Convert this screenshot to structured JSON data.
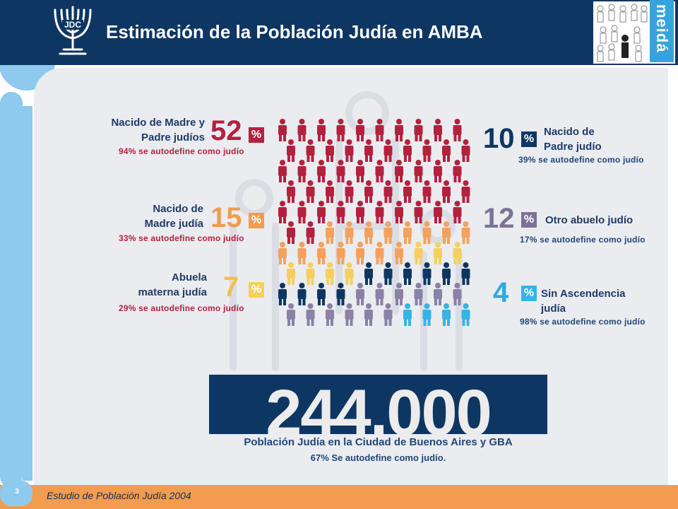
{
  "header": {
    "title": "Estimación de la Población Judía en AMBA",
    "logo_text": "JDC",
    "brand": "meidá"
  },
  "categories": [
    {
      "label_lines": [
        "Nacido de Madre y",
        "Padre judíos"
      ],
      "value": "52",
      "percent_sign": "%",
      "note": "94% se autodefine como judío",
      "color": "#b4213f"
    },
    {
      "label_lines": [
        "Nacido de",
        "Madre judía"
      ],
      "value": "15",
      "percent_sign": "%",
      "note": "33% se autodefine como judío",
      "color": "#f5a15c"
    },
    {
      "label_lines": [
        "Abuela",
        "materna judía"
      ],
      "value": "7",
      "percent_sign": "%",
      "note": "29% se autodefine como judío",
      "color": "#f6cf5e"
    },
    {
      "label_lines": [
        "Nacido de",
        "Padre judío"
      ],
      "value": "10",
      "percent_sign": "%",
      "note": "39% se autodefine como judío",
      "color": "#0d3663"
    },
    {
      "label_lines": [
        "Otro abuelo judío"
      ],
      "value": "12",
      "percent_sign": "%",
      "note": "17% se autodefine como judío",
      "color": "#8a81a6"
    },
    {
      "label_lines": [
        "Sin Ascendencia",
        "judía"
      ],
      "value": "4",
      "percent_sign": "%",
      "note": "98% se autodefine como judío",
      "color": "#37b3e6"
    }
  ],
  "total": {
    "value": "244.000",
    "caption": "Población Judía en la Ciudad de Buenos Aires y GBA",
    "sub": "67% Se autodefine como judío."
  },
  "footer": {
    "text": "Estudio de Población Judía 2004",
    "page": "3"
  },
  "colors": {
    "navy": "#0d3663",
    "light_blue": "#8ec9ee",
    "orange": "#f29c50",
    "gray_bg": "#eaecef"
  }
}
